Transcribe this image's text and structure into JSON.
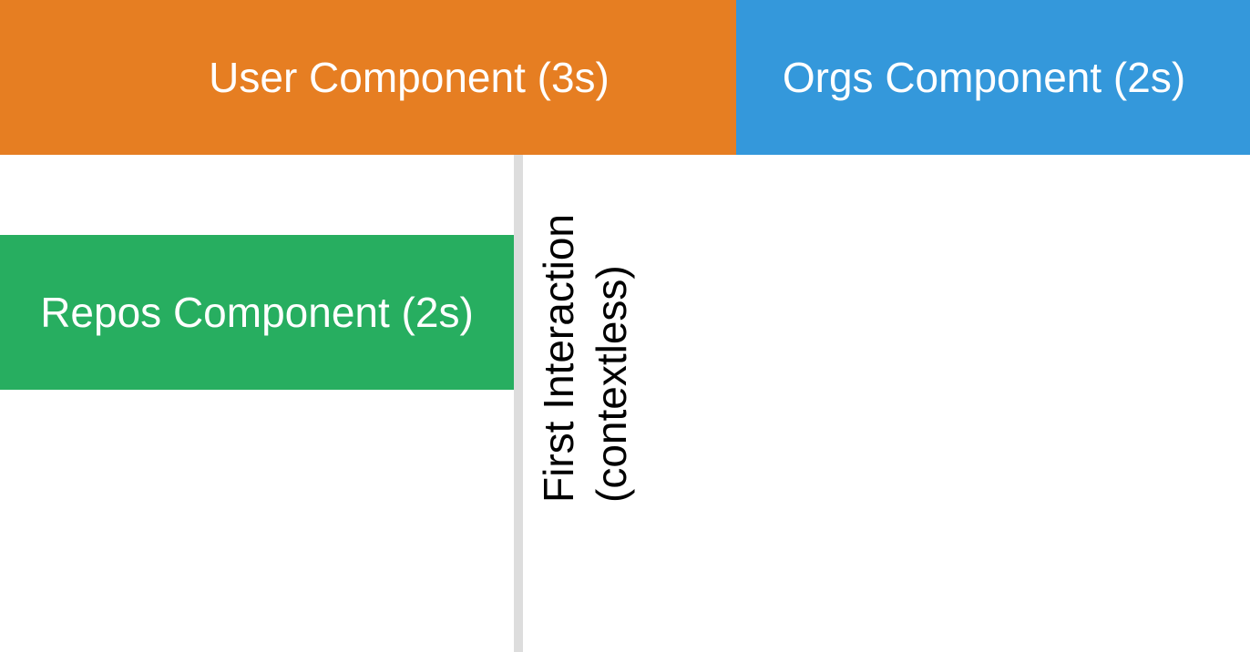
{
  "diagram": {
    "components": [
      {
        "label": "User Component (3s)",
        "color": "#E67E22"
      },
      {
        "label": "Orgs Component (2s)",
        "color": "#3498DB"
      },
      {
        "label": "Repos Component (2s)",
        "color": "#27AE60"
      }
    ],
    "marker": {
      "line1": "First Interaction",
      "line2": "(contextless)",
      "line_color": "#DDDDDD"
    }
  }
}
